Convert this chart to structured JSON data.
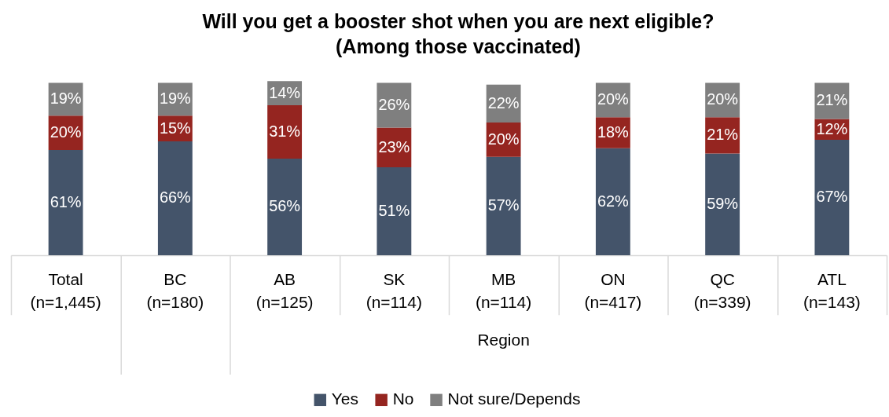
{
  "chart_data": {
    "type": "bar",
    "title": "Will you get a booster shot when you are next eligible?\n(Among those vaccinated)",
    "categories": [
      "Total\n(n=1,445)",
      "BC\n(n=180)",
      "AB\n(n=125)",
      "SK\n(n=114)",
      "MB\n(n=114)",
      "ON\n(n=417)",
      "QC\n(n=339)",
      "ATL\n(n=143)"
    ],
    "series": [
      {
        "name": "Yes",
        "color": "#44546a",
        "values": [
          61,
          66,
          56,
          51,
          57,
          62,
          59,
          67
        ],
        "value_labels": [
          "61%",
          "66%",
          "56%",
          "51%",
          "57%",
          "62%",
          "59%",
          "67%"
        ]
      },
      {
        "name": "No",
        "color": "#952520",
        "values": [
          20,
          15,
          31,
          23,
          20,
          18,
          21,
          12
        ],
        "value_labels": [
          "20%",
          "15%",
          "31%",
          "23%",
          "20%",
          "18%",
          "21%",
          "12%"
        ]
      },
      {
        "name": "Not sure/Depends",
        "color": "#7f7f7f",
        "values": [
          19,
          19,
          14,
          26,
          22,
          20,
          20,
          21
        ],
        "value_labels": [
          "19%",
          "19%",
          "14%",
          "26%",
          "22%",
          "20%",
          "20%",
          "21%"
        ]
      }
    ],
    "stacked": true,
    "legend": "bottom",
    "annotations": [
      "Region"
    ]
  }
}
